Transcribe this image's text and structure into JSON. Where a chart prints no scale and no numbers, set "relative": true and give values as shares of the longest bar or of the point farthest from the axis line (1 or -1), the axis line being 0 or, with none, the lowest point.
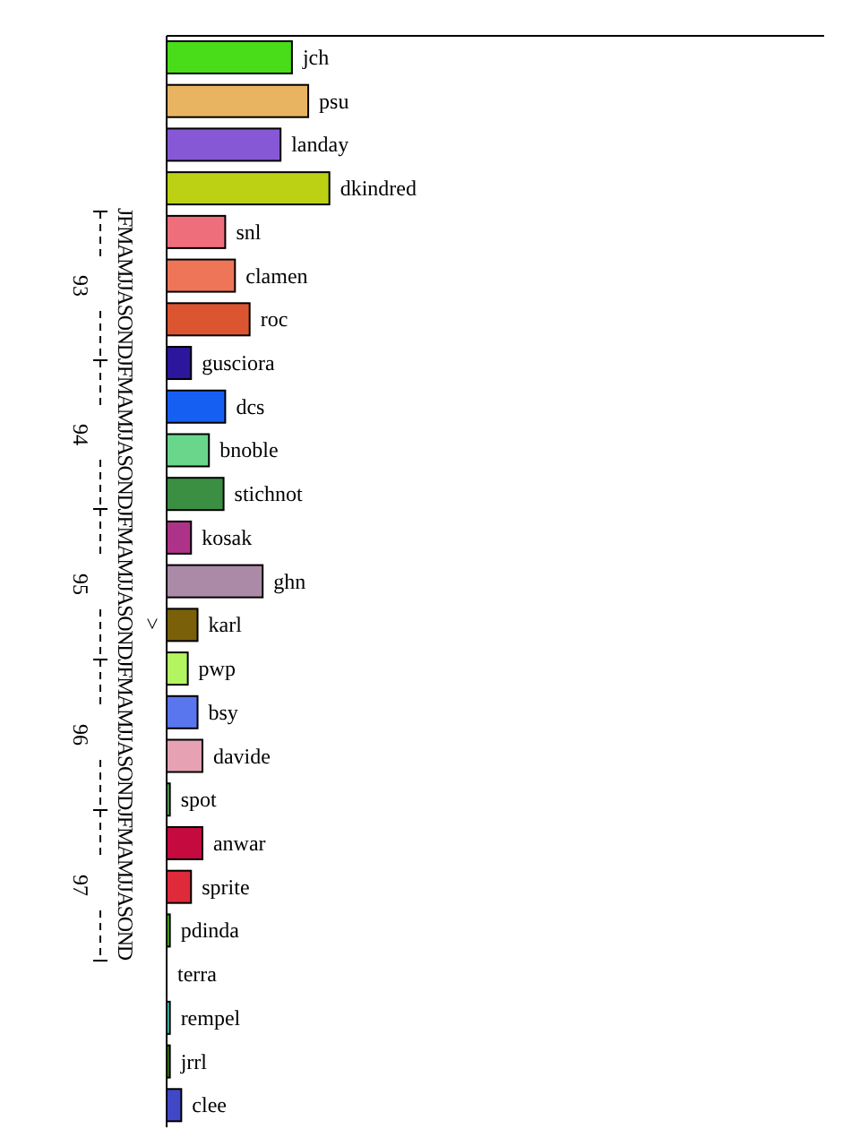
{
  "chart_data": {
    "type": "bar",
    "orientation": "horizontal",
    "relative": true,
    "categories": [
      "jch",
      "psu",
      "landay",
      "dkindred",
      "snl",
      "clamen",
      "roc",
      "gusciora",
      "dcs",
      "bnoble",
      "stichnot",
      "kosak",
      "ghn",
      "karl",
      "pwp",
      "bsy",
      "davide",
      "spot",
      "anwar",
      "sprite",
      "pdinda",
      "terra",
      "rempel",
      "jrrl",
      "clee"
    ],
    "values": [
      0.77,
      0.87,
      0.7,
      1,
      0.36,
      0.42,
      0.51,
      0.15,
      0.36,
      0.26,
      0.35,
      0.15,
      0.59,
      0.19,
      0.13,
      0.19,
      0.22,
      0.02,
      0.22,
      0.15,
      0.02,
      0,
      0.02,
      0.02,
      0.09
    ],
    "colors": [
      "#48dc19",
      "#e9b462",
      "#8658d6",
      "#bcd114",
      "#ee6f7b",
      "#ee7557",
      "#dc5531",
      "#2b169c",
      "#1560f3",
      "#69d68c",
      "#3a8f42",
      "#ad3388",
      "#ab8aa8",
      "#7a6008",
      "#b3f560",
      "#5a76ee",
      "#e6a2b3",
      "#5fb05f",
      "#c40a3e",
      "#df2a3a",
      "#4fbb10",
      null,
      "#40d0c0",
      "#3a7a10",
      "#4048c8"
    ],
    "annotations": [
      "JFMAMJJASONDJFMAMJJASONDJFMAMJJASONDJFMAMJJASONDJFMAMJJASOND",
      "93",
      "94",
      "95",
      "96",
      "97",
      ">"
    ]
  }
}
